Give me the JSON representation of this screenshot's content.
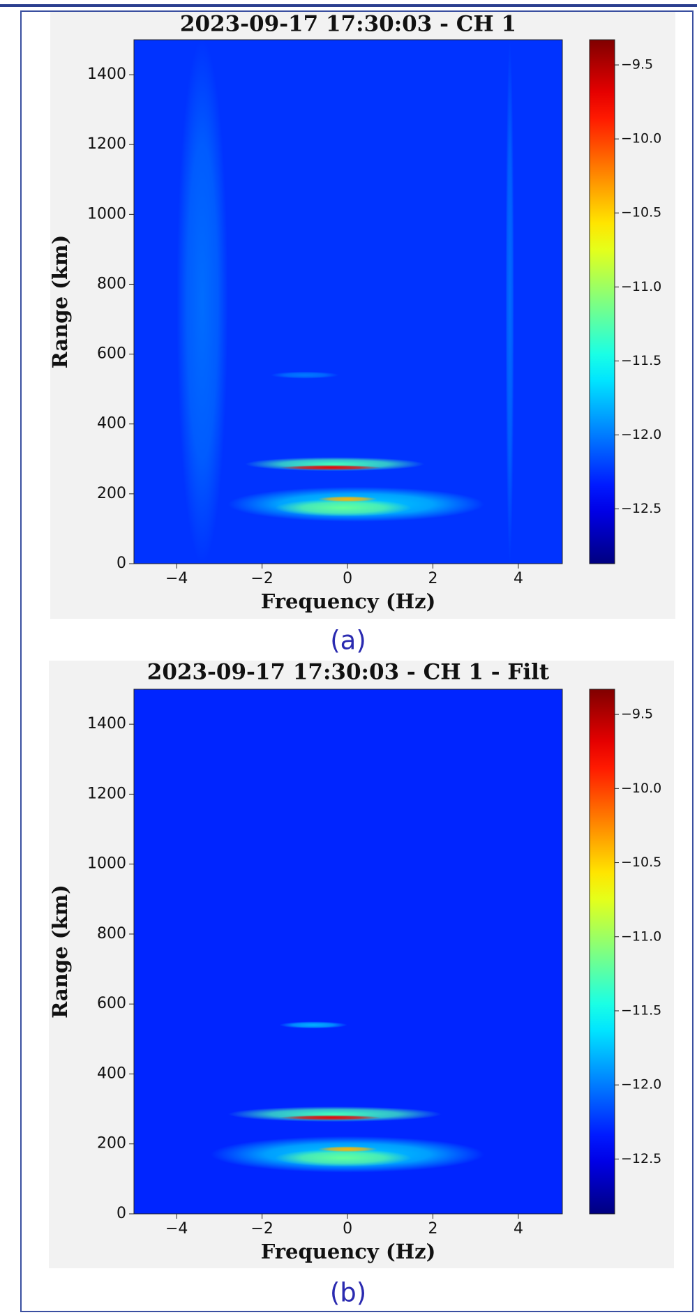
{
  "chart_data": [
    {
      "type": "heatmap",
      "title": "2023-09-17 17:30:03 - CH 1",
      "xlabel": "Frequency (Hz)",
      "ylabel": "Range (km)",
      "caption": "(a)",
      "xlim": [
        -5,
        5.03
      ],
      "ylim": [
        0,
        1500
      ],
      "xticks": [
        {
          "value": -4,
          "label": "−4"
        },
        {
          "value": -2,
          "label": "−2"
        },
        0,
        2,
        4
      ],
      "yticks": [
        0,
        200,
        400,
        600,
        800,
        1000,
        1200,
        1400
      ],
      "background": -12.25,
      "hotspots": {
        "x": [
          -3.4,
          3.8,
          -1.0,
          0.2,
          -0.1,
          -0.3,
          0.0,
          -0.4
        ],
        "y": [
          750,
          750,
          540,
          170,
          160,
          285,
          185,
          275
        ],
        "x_spread": [
          0.6,
          0.1,
          0.8,
          3.0,
          1.6,
          2.1,
          0.7,
          1.2
        ],
        "y_spread": [
          750,
          750,
          10,
          50,
          25,
          20,
          8,
          7
        ],
        "values": [
          -12.05,
          -12.05,
          -12.0,
          -11.7,
          -11.2,
          -11.3,
          -10.4,
          -9.7
        ]
      },
      "colorbar": {
        "lim": [
          -12.87,
          -9.33
        ],
        "ticks": [
          {
            "value": -9.5,
            "label": "−9.5"
          },
          {
            "value": -10.0,
            "label": "−10.0"
          },
          {
            "value": -10.5,
            "label": "−10.5"
          },
          {
            "value": -11.0,
            "label": "−11.0"
          },
          {
            "value": -11.5,
            "label": "−11.5"
          },
          {
            "value": -12.0,
            "label": "−12.0"
          },
          {
            "value": -12.5,
            "label": "−12.5"
          }
        ]
      }
    },
    {
      "type": "heatmap",
      "title": "2023-09-17 17:30:03 - CH 1 - Filt",
      "xlabel": "Frequency (Hz)",
      "ylabel": "Range (km)",
      "caption": "(b)",
      "xlim": [
        -5,
        5.03
      ],
      "ylim": [
        0,
        1500
      ],
      "xticks": [
        {
          "value": -4,
          "label": "−4"
        },
        {
          "value": -2,
          "label": "−2"
        },
        0,
        2,
        4
      ],
      "yticks": [
        0,
        200,
        400,
        600,
        800,
        1000,
        1200,
        1400
      ],
      "background": -12.3,
      "hotspots": {
        "x": [
          -0.8,
          0.0,
          -0.1,
          -0.3,
          0.0,
          -0.4
        ],
        "y": [
          540,
          170,
          160,
          285,
          185,
          275
        ],
        "x_spread": [
          0.8,
          3.2,
          1.6,
          2.5,
          0.7,
          1.2
        ],
        "y_spread": [
          10,
          52,
          25,
          22,
          8,
          7
        ],
        "values": [
          -11.8,
          -11.7,
          -11.2,
          -11.3,
          -10.4,
          -9.7
        ]
      },
      "colorbar": {
        "lim": [
          -12.87,
          -9.33
        ],
        "ticks": [
          {
            "value": -9.5,
            "label": "−9.5"
          },
          {
            "value": -10.0,
            "label": "−10.0"
          },
          {
            "value": -10.5,
            "label": "−10.5"
          },
          {
            "value": -11.0,
            "label": "−11.0"
          },
          {
            "value": -11.5,
            "label": "−11.5"
          },
          {
            "value": -12.0,
            "label": "−12.0"
          },
          {
            "value": -12.5,
            "label": "−12.5"
          }
        ]
      }
    }
  ]
}
